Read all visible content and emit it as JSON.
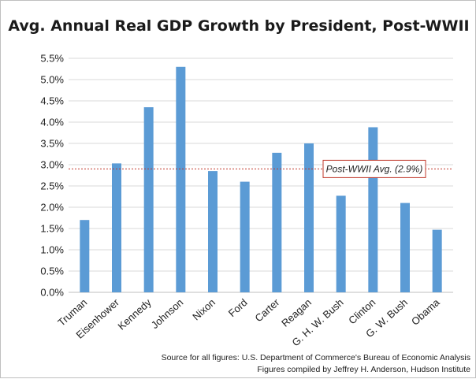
{
  "chart_data": {
    "type": "bar",
    "title": "Avg. Annual Real GDP Growth by President, Post-WWII",
    "categories": [
      "Truman",
      "Eisenhower",
      "Kennedy",
      "Johnson",
      "Nixon",
      "Ford",
      "Carter",
      "Reagan",
      "G. H. W. Bush",
      "Clinton",
      "G. W. Bush",
      "Obama"
    ],
    "values": [
      1.7,
      3.03,
      4.35,
      5.3,
      2.85,
      2.6,
      3.28,
      3.5,
      2.27,
      3.88,
      2.1,
      1.47
    ],
    "ylim": [
      0,
      5.5
    ],
    "yticks": [
      "0.0%",
      "0.5%",
      "1.0%",
      "1.5%",
      "2.0%",
      "2.5%",
      "3.0%",
      "3.5%",
      "4.0%",
      "4.5%",
      "5.0%",
      "5.5%"
    ],
    "grid": true,
    "bar_color": "#5b9bd5",
    "reference_line": {
      "value": 2.9,
      "label": "Post-WWII Avg. (2.9%)",
      "color": "#c0392b"
    },
    "source": [
      "Source for all figures: U.S. Department of Commerce's Bureau of Economic Analysis",
      "Figures compiled by Jeffrey H. Anderson, Hudson Institute"
    ]
  }
}
